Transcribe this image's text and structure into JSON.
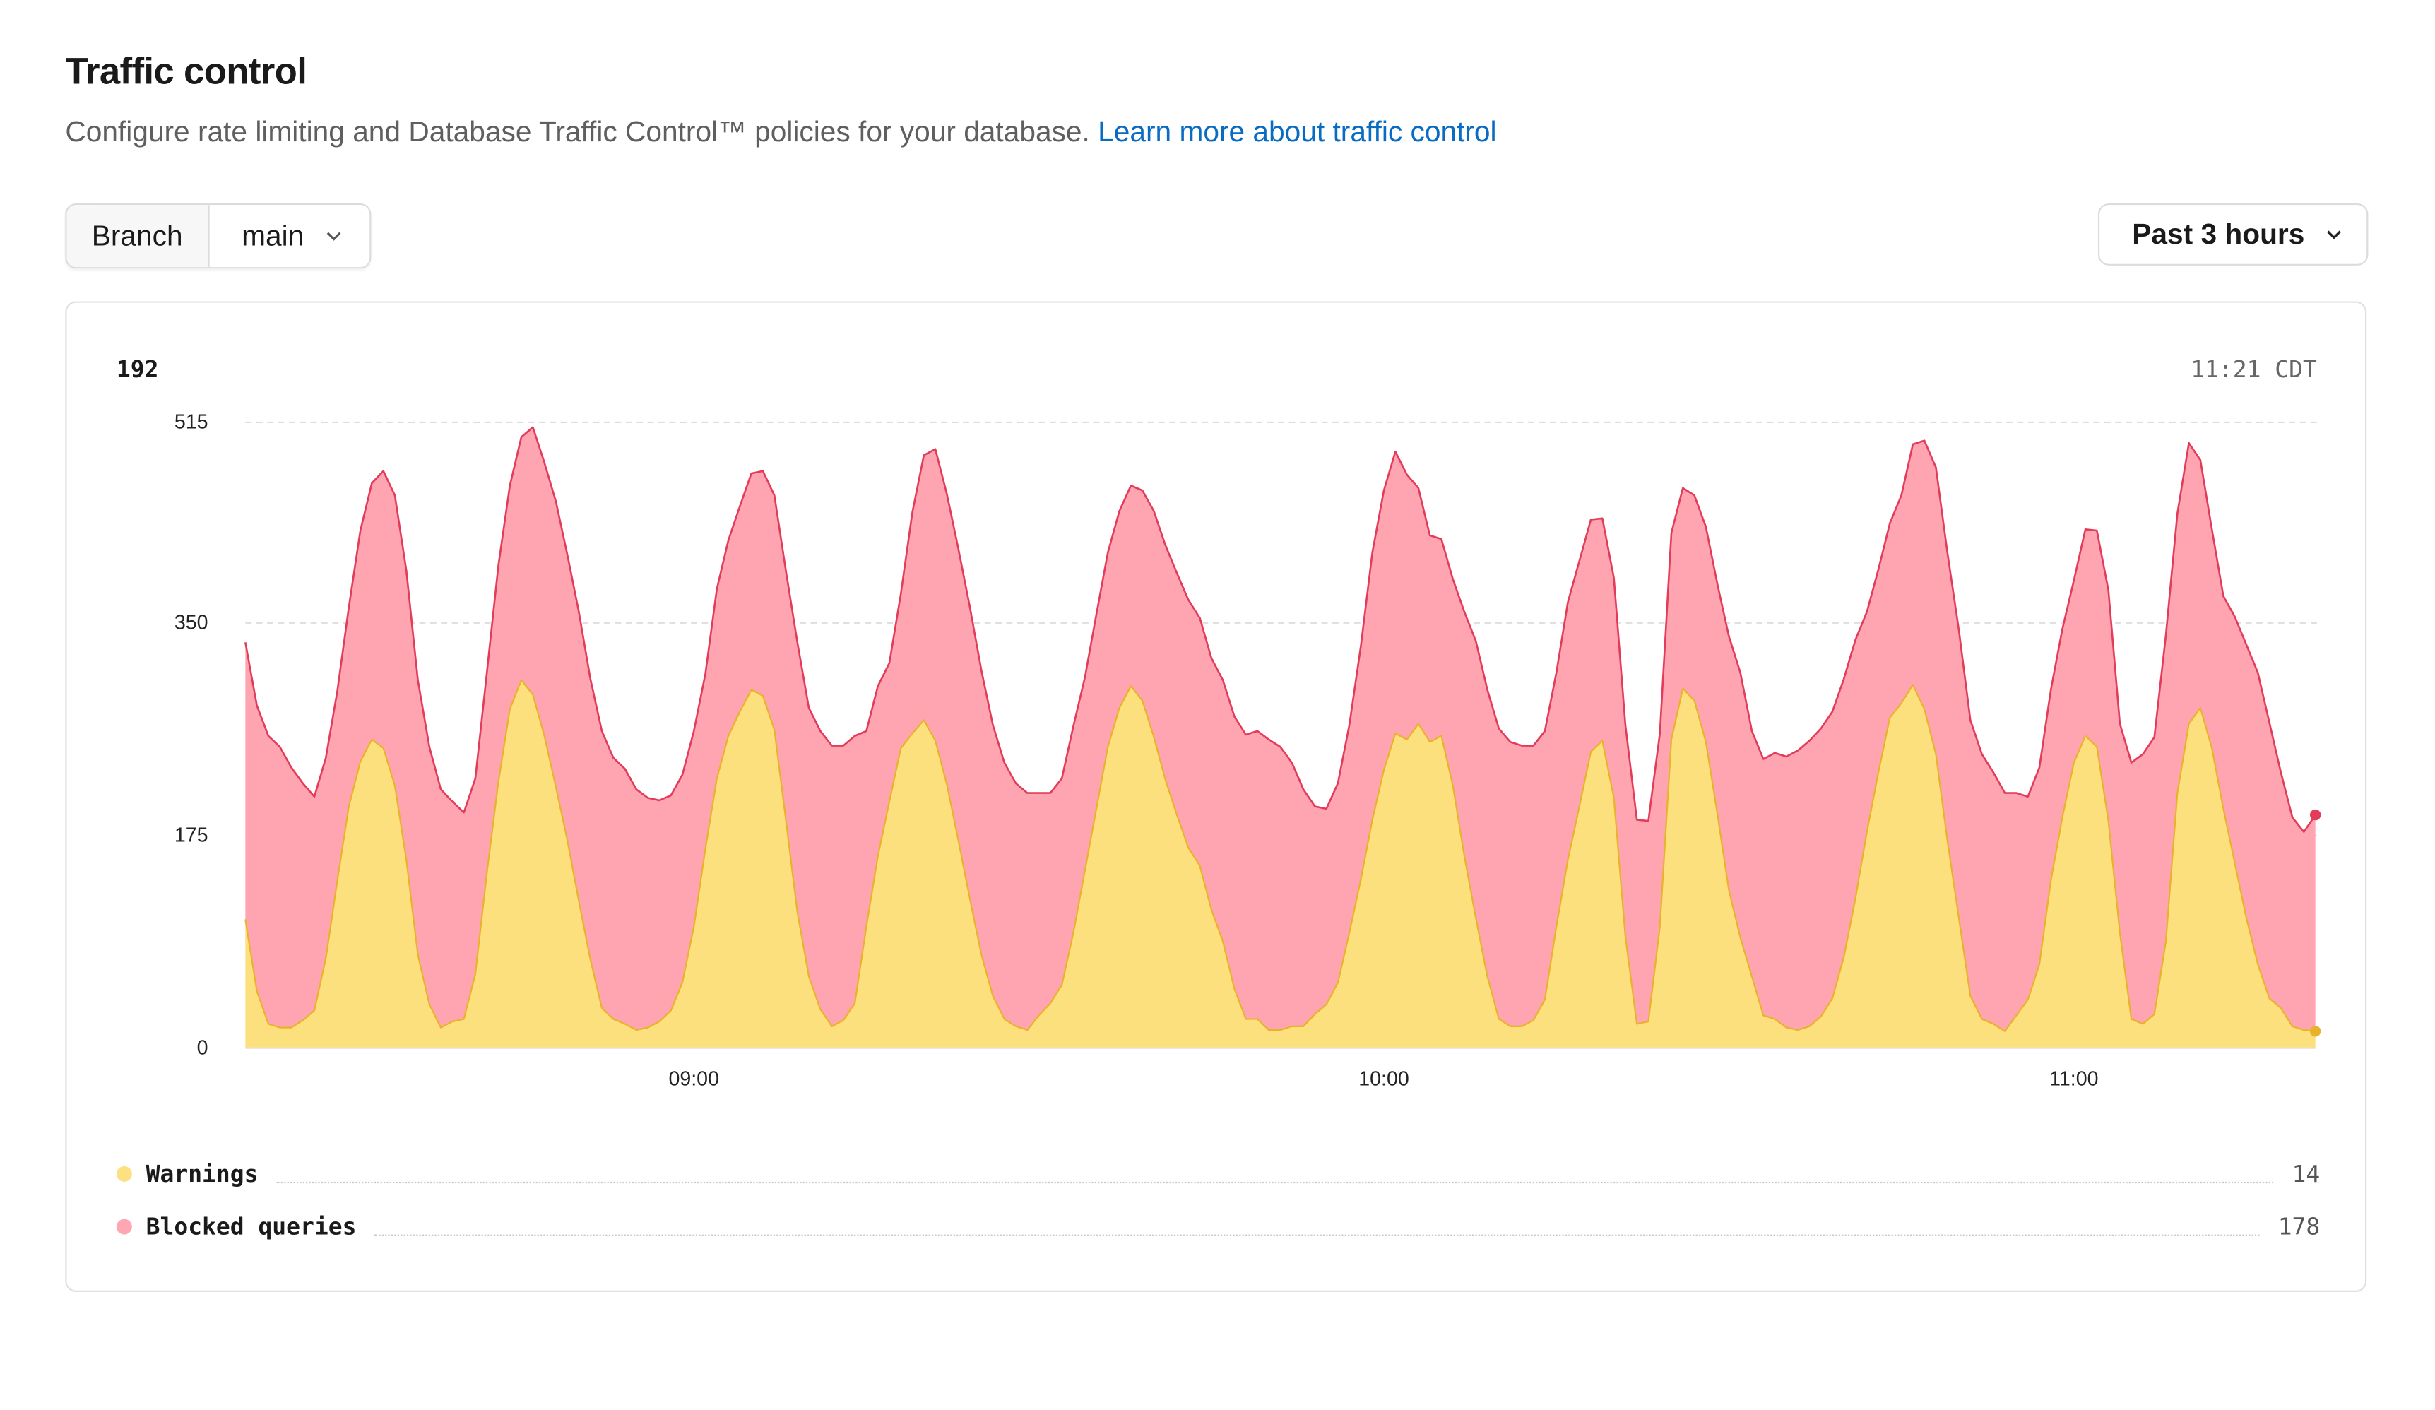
{
  "page": {
    "title": "Traffic control",
    "description": "Configure rate limiting and Database Traffic Control™ policies for your database.",
    "learn_more_link": "Learn more about traffic control"
  },
  "filters": {
    "branch_label": "Branch",
    "branch_value": "main",
    "time_range": "Past 3 hours"
  },
  "chart_header": {
    "current_total": "192",
    "timestamp": "11:21 CDT"
  },
  "legend": [
    {
      "name": "Warnings",
      "value": "14",
      "color": "#fde07f"
    },
    {
      "name": "Blocked queries",
      "value": "178",
      "color": "#ffa6b3"
    }
  ],
  "colors": {
    "warnings_fill": "#fce07e",
    "warnings_line": "#e8b22a",
    "blocked_fill": "#ffa5b2",
    "blocked_line": "#e23c5a",
    "grid": "#dedede",
    "link": "#0a6bc2"
  },
  "chart_data": {
    "type": "area",
    "stacked": true,
    "title": "",
    "xlabel": "",
    "ylabel": "",
    "ylim": [
      0,
      515
    ],
    "yticks": [
      0,
      175,
      350,
      515
    ],
    "xticks": [
      {
        "label": "09:00",
        "index": 39
      },
      {
        "label": "10:00",
        "index": 99
      },
      {
        "label": "11:00",
        "index": 159
      }
    ],
    "x_start": "08:21",
    "x_end": "11:21",
    "x_step_minutes": 1,
    "grid": true,
    "legend_position": "bottom",
    "series": [
      {
        "name": "Warnings",
        "values": [
          106,
          47,
          20,
          17,
          17,
          23,
          31,
          74,
          138,
          199,
          236,
          254,
          247,
          216,
          155,
          77,
          36,
          17,
          22,
          24,
          61,
          144,
          219,
          279,
          303,
          291,
          257,
          215,
          171,
          121,
          73,
          33,
          24,
          20,
          15,
          17,
          22,
          31,
          54,
          100,
          164,
          222,
          257,
          277,
          295,
          290,
          262,
          188,
          112,
          59,
          32,
          18,
          23,
          37,
          100,
          158,
          203,
          247,
          259,
          270,
          253,
          217,
          171,
          123,
          77,
          43,
          24,
          18,
          15,
          27,
          37,
          52,
          95,
          146,
          197,
          248,
          280,
          298,
          286,
          256,
          221,
          192,
          165,
          150,
          114,
          88,
          49,
          24,
          24,
          15,
          15,
          18,
          18,
          28,
          36,
          54,
          95,
          139,
          188,
          229,
          259,
          254,
          267,
          252,
          257,
          216,
          158,
          107,
          59,
          24,
          18,
          18,
          23,
          40,
          100,
          155,
          199,
          244,
          253,
          206,
          92,
          20,
          22,
          100,
          254,
          296,
          286,
          252,
          193,
          130,
          91,
          59,
          27,
          24,
          17,
          15,
          18,
          26,
          41,
          75,
          123,
          178,
          227,
          272,
          284,
          299,
          279,
          242,
          171,
          107,
          43,
          24,
          20,
          14,
          27,
          40,
          69,
          138,
          190,
          235,
          257,
          248,
          187,
          95,
          24,
          20,
          28,
          88,
          210,
          267,
          280,
          247,
          197,
          152,
          107,
          69,
          41,
          33,
          18,
          15,
          14
        ]
      },
      {
        "name": "Blocked queries",
        "values": [
          228,
          235,
          237,
          231,
          214,
          195,
          176,
          165,
          156,
          164,
          190,
          211,
          228,
          239,
          238,
          226,
          212,
          196,
          181,
          170,
          161,
          165,
          178,
          184,
          200,
          220,
          225,
          235,
          235,
          238,
          231,
          228,
          215,
          210,
          198,
          189,
          182,
          177,
          171,
          161,
          144,
          156,
          161,
          169,
          178,
          185,
          193,
          205,
          222,
          221,
          229,
          231,
          226,
          220,
          161,
          140,
          114,
          127,
          182,
          218,
          240,
          239,
          240,
          240,
          234,
          223,
          211,
          200,
          195,
          183,
          173,
          170,
          170,
          159,
          160,
          160,
          162,
          165,
          173,
          186,
          193,
          199,
          204,
          204,
          207,
          215,
          224,
          234,
          237,
          239,
          233,
          217,
          195,
          171,
          161,
          164,
          171,
          192,
          220,
          230,
          232,
          218,
          194,
          170,
          162,
          170,
          201,
          228,
          236,
          239,
          234,
          231,
          226,
          221,
          209,
          212,
          202,
          191,
          183,
          181,
          174,
          168,
          165,
          159,
          170,
          165,
          169,
          177,
          189,
          209,
          218,
          202,
          211,
          219,
          223,
          230,
          235,
          237,
          236,
          229,
          213,
          181,
          167,
          160,
          171,
          198,
          221,
          236,
          237,
          237,
          227,
          218,
          207,
          196,
          183,
          167,
          162,
          157,
          155,
          150,
          170,
          178,
          190,
          172,
          211,
          222,
          228,
          252,
          230,
          231,
          204,
          180,
          175,
          203,
          225,
          240,
          227,
          194,
          172,
          163,
          178
        ]
      }
    ]
  }
}
